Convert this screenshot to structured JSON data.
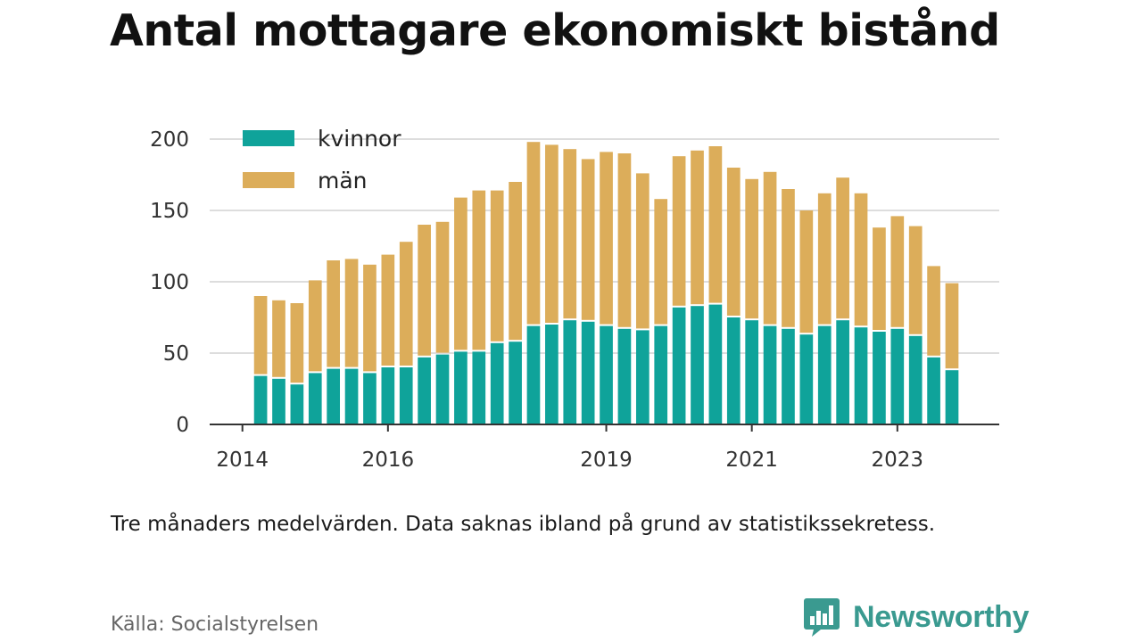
{
  "title": "Antal mottagare ekonomiskt bistånd",
  "note": "Tre månaders medelvärden. Data saknas ibland på grund av statistikssekretess.",
  "source": "Källa: Socialstyrelsen",
  "brand": {
    "name": "Newsworthy",
    "icon": "newsworthy-logo-icon"
  },
  "colors": {
    "kvinnor": "#0fa39a",
    "man": "#dcad5a",
    "grid": "#dddddd",
    "axis": "#333333",
    "brand": "#3a9a90"
  },
  "chart_data": {
    "type": "bar",
    "stacked": true,
    "x_ticks": [
      "2014",
      "2016",
      "2019",
      "2021",
      "2023"
    ],
    "x_tick_positions": [
      2014.0,
      2016.0,
      2019.0,
      2021.0,
      2023.0
    ],
    "xlim": [
      2013.55,
      2024.4
    ],
    "y_ticks": [
      "0",
      "50",
      "100",
      "150",
      "200"
    ],
    "ylim": [
      0,
      200
    ],
    "grid": true,
    "legend": "top-left",
    "x": [
      2014.25,
      2014.5,
      2014.75,
      2015.0,
      2015.25,
      2015.5,
      2015.75,
      2016.0,
      2016.25,
      2016.5,
      2016.75,
      2017.0,
      2017.25,
      2017.5,
      2017.75,
      2018.0,
      2018.25,
      2018.5,
      2018.75,
      2019.0,
      2019.25,
      2019.5,
      2019.75,
      2020.0,
      2020.25,
      2020.5,
      2020.75,
      2021.0,
      2021.25,
      2021.5,
      2021.75,
      2022.0,
      2022.25,
      2022.5,
      2022.75,
      2023.0,
      2023.25,
      2023.5,
      2023.75,
      2024.0
    ],
    "series": [
      {
        "name": "kvinnor",
        "values": [
          34,
          32,
          28,
          36,
          39,
          39,
          36,
          40,
          40,
          47,
          49,
          51,
          51,
          57,
          58,
          69,
          70,
          73,
          72,
          69,
          67,
          66,
          69,
          82,
          83,
          84,
          75,
          73,
          69,
          67,
          63,
          69,
          73,
          68,
          65,
          67,
          62,
          47,
          38,
          0
        ]
      },
      {
        "name": "män",
        "values": [
          56,
          55,
          57,
          65,
          76,
          77,
          76,
          79,
          88,
          93,
          93,
          108,
          113,
          107,
          112,
          129,
          126,
          120,
          114,
          122,
          123,
          110,
          89,
          106,
          109,
          111,
          105,
          99,
          108,
          98,
          87,
          93,
          100,
          94,
          73,
          79,
          77,
          64,
          61,
          0
        ]
      }
    ]
  }
}
